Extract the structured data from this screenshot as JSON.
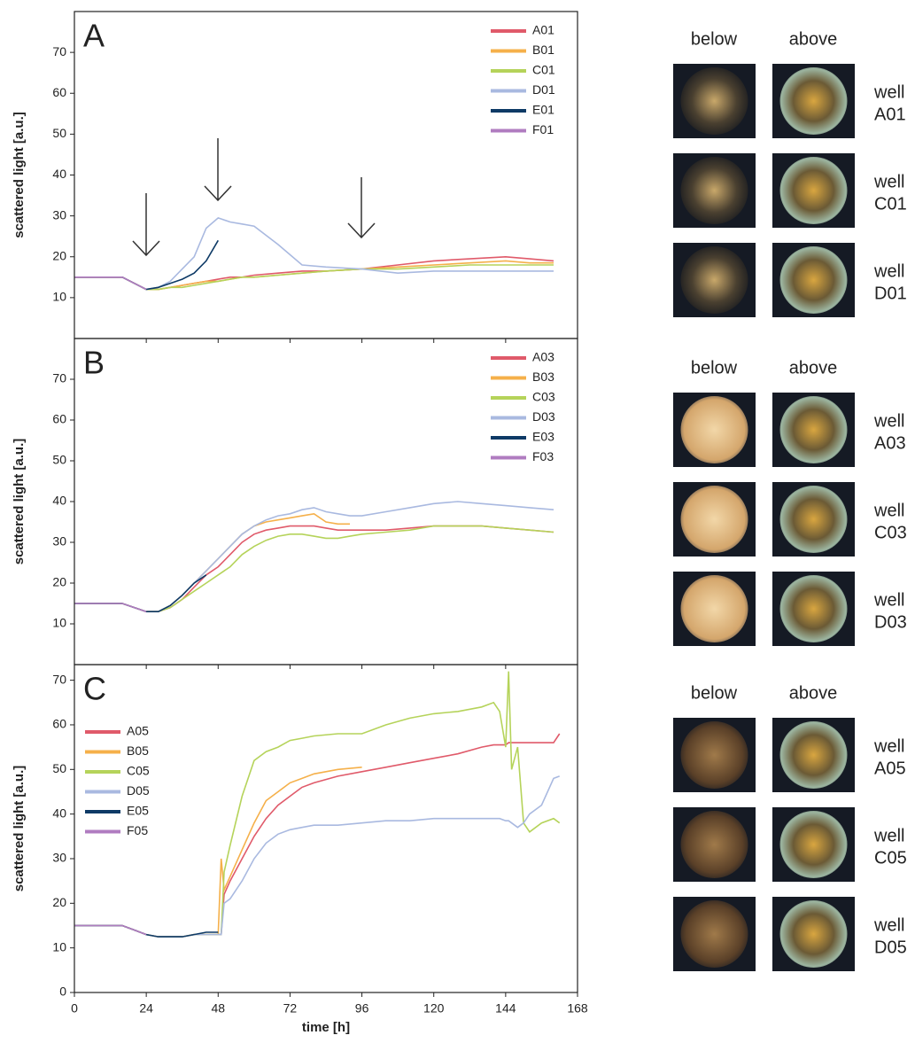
{
  "chart_data": [
    {
      "type": "line",
      "title": "A",
      "ylabel": "scattered light [a.u.]",
      "legend": "upper right",
      "xlim": [
        0,
        168
      ],
      "ylim": [
        0,
        80
      ],
      "yticks": [
        10,
        20,
        30,
        40,
        50,
        60,
        70
      ],
      "x": [
        0,
        8,
        16,
        20,
        24,
        28,
        32,
        36,
        40,
        44,
        48,
        52,
        56,
        60,
        68,
        76,
        84,
        96,
        108,
        120,
        132,
        144,
        152,
        160
      ],
      "series": [
        {
          "name": "A01",
          "color": "#e05a6a",
          "values": [
            15,
            15,
            15,
            13.5,
            12,
            12,
            12.5,
            13,
            13.5,
            14,
            14.5,
            15,
            15,
            15.5,
            16,
            16.5,
            16.5,
            17,
            18,
            19,
            19.5,
            20,
            19.5,
            19
          ]
        },
        {
          "name": "B01",
          "color": "#f5b04a",
          "values": [
            15,
            15,
            15,
            13.5,
            12,
            12,
            12.5,
            13,
            13.5,
            14,
            14,
            14.5,
            15,
            15,
            15.5,
            16,
            16.5,
            17,
            17.5,
            18,
            18.5,
            19,
            18.5,
            18.5
          ]
        },
        {
          "name": "C01",
          "color": "#b5d35a",
          "values": [
            15,
            15,
            15,
            13.5,
            12,
            12,
            12.5,
            12.5,
            13,
            13.5,
            14,
            14.5,
            15,
            15,
            15.5,
            16,
            16.5,
            17,
            17,
            17.5,
            18,
            18,
            18,
            18
          ]
        },
        {
          "name": "D01",
          "color": "#a9b9e0",
          "values": [
            15,
            15,
            15,
            13.5,
            12,
            12.5,
            14,
            17,
            20,
            27,
            29.5,
            28.5,
            28,
            27.5,
            23,
            18,
            17.5,
            17,
            16,
            16.5,
            16.5,
            16.5,
            16.5,
            16.5
          ]
        },
        {
          "name": "E01",
          "color": "#0e3a66",
          "values": [
            15,
            15,
            15,
            13.5,
            12,
            12.5,
            13.5,
            14.5,
            16,
            19,
            24,
            null,
            null,
            null,
            null,
            null,
            null,
            null,
            null,
            null,
            null,
            null,
            null,
            null
          ]
        },
        {
          "name": "F01",
          "color": "#b07cc0",
          "values": [
            15,
            15,
            15,
            13.5,
            12,
            null,
            null,
            null,
            null,
            null,
            null,
            null,
            null,
            null,
            null,
            null,
            null,
            null,
            null,
            null,
            null,
            null,
            null,
            null
          ]
        }
      ]
    },
    {
      "type": "line",
      "title": "B",
      "ylabel": "scattered light [a.u.]",
      "legend": "upper right",
      "xlim": [
        0,
        168
      ],
      "ylim": [
        0,
        80
      ],
      "yticks": [
        10,
        20,
        30,
        40,
        50,
        60,
        70
      ],
      "x": [
        0,
        8,
        16,
        20,
        24,
        28,
        32,
        36,
        40,
        44,
        48,
        52,
        56,
        60,
        64,
        68,
        72,
        76,
        80,
        84,
        88,
        92,
        96,
        104,
        112,
        120,
        128,
        136,
        144,
        152,
        160
      ],
      "series": [
        {
          "name": "A03",
          "color": "#e05a6a",
          "values": [
            15,
            15,
            15,
            14,
            13,
            13,
            14,
            16,
            19,
            22,
            24,
            27,
            30,
            32,
            33,
            33.5,
            34,
            34,
            34,
            33.5,
            33,
            33,
            33,
            33,
            33.5,
            34,
            34,
            34,
            33.5,
            33,
            32.5
          ]
        },
        {
          "name": "B03",
          "color": "#f5b04a",
          "values": [
            15,
            15,
            15,
            14,
            13,
            13,
            14.5,
            17,
            20,
            23,
            26,
            29,
            32,
            34,
            35,
            35.5,
            36,
            36.5,
            37,
            35,
            34.5,
            34.5,
            null,
            null,
            null,
            null,
            null,
            null,
            null,
            null,
            null
          ]
        },
        {
          "name": "C03",
          "color": "#b5d35a",
          "values": [
            15,
            15,
            15,
            14,
            13,
            13,
            14,
            16,
            18,
            20,
            22,
            24,
            27,
            29,
            30.5,
            31.5,
            32,
            32,
            31.5,
            31,
            31,
            31.5,
            32,
            32.5,
            33,
            34,
            34,
            34,
            33.5,
            33,
            32.5
          ]
        },
        {
          "name": "D03",
          "color": "#a9b9e0",
          "values": [
            15,
            15,
            15,
            14,
            13,
            13,
            14.5,
            17,
            20,
            23,
            26,
            29,
            32,
            34,
            35.5,
            36.5,
            37,
            38,
            38.5,
            37.5,
            37,
            36.5,
            36.5,
            37.5,
            38.5,
            39.5,
            40,
            39.5,
            39,
            38.5,
            38
          ]
        },
        {
          "name": "E03",
          "color": "#0e3a66",
          "values": [
            15,
            15,
            15,
            14,
            13,
            13,
            14.5,
            17,
            20,
            22,
            null,
            null,
            null,
            null,
            null,
            null,
            null,
            null,
            null,
            null,
            null,
            null,
            null,
            null,
            null,
            null,
            null,
            null,
            null,
            null,
            null
          ]
        },
        {
          "name": "F03",
          "color": "#b07cc0",
          "values": [
            15,
            15,
            15,
            14,
            13,
            null,
            null,
            null,
            null,
            null,
            null,
            null,
            null,
            null,
            null,
            null,
            null,
            null,
            null,
            null,
            null,
            null,
            null,
            null,
            null,
            null,
            null,
            null,
            null,
            null,
            null
          ]
        }
      ]
    },
    {
      "type": "line",
      "title": "C",
      "ylabel": "scattered light [a.u.]",
      "xlabel": "time [h]",
      "legend": "upper left",
      "xlim": [
        0,
        168
      ],
      "ylim": [
        0,
        73.5
      ],
      "xticks": [
        0,
        24,
        48,
        72,
        96,
        120,
        144,
        168
      ],
      "yticks": [
        0,
        10,
        20,
        30,
        40,
        50,
        60,
        70
      ],
      "x": [
        0,
        8,
        16,
        20,
        24,
        28,
        32,
        36,
        40,
        44,
        48,
        49,
        50,
        52,
        56,
        60,
        64,
        68,
        72,
        76,
        80,
        88,
        96,
        104,
        112,
        120,
        128,
        136,
        140,
        142,
        144,
        145,
        146,
        148,
        150,
        152,
        156,
        160,
        162
      ],
      "series": [
        {
          "name": "A05",
          "color": "#e05a6a",
          "values": [
            15,
            15,
            15,
            14,
            13,
            12.5,
            12.5,
            12.5,
            13,
            13,
            13,
            13,
            22,
            25,
            30,
            35,
            39,
            42,
            44,
            46,
            47,
            48.5,
            49.5,
            50.5,
            51.5,
            52.5,
            53.5,
            55,
            55.5,
            55.5,
            55.5,
            56,
            56,
            56,
            56,
            56,
            56,
            56,
            58
          ]
        },
        {
          "name": "B05",
          "color": "#f5b04a",
          "values": [
            15,
            15,
            15,
            14,
            13,
            12.5,
            12.5,
            12.5,
            13,
            13,
            13,
            30,
            23,
            26,
            32,
            38,
            43,
            45,
            47,
            48,
            49,
            50,
            50.5,
            null,
            null,
            null,
            null,
            null,
            null,
            null,
            null,
            null,
            null,
            null,
            null,
            null,
            null,
            null,
            null
          ]
        },
        {
          "name": "C05",
          "color": "#b5d35a",
          "values": [
            15,
            15,
            15,
            14,
            13,
            12.5,
            12.5,
            12.5,
            13,
            13,
            13,
            13,
            27,
            33,
            44,
            52,
            54,
            55,
            56.5,
            57,
            57.5,
            58,
            58,
            60,
            61.5,
            62.5,
            63,
            64,
            65,
            63,
            55,
            72,
            50,
            55,
            38,
            36,
            38,
            39,
            38
          ]
        },
        {
          "name": "D05",
          "color": "#a9b9e0",
          "values": [
            15,
            15,
            15,
            14,
            13,
            12.5,
            12.5,
            12.5,
            13,
            13,
            13,
            13,
            20,
            21,
            25,
            30,
            33.5,
            35.5,
            36.5,
            37,
            37.5,
            37.5,
            38,
            38.5,
            38.5,
            39,
            39,
            39,
            39,
            39,
            38.5,
            38.5,
            38,
            37,
            38,
            40,
            42,
            48,
            48.5
          ]
        },
        {
          "name": "E05",
          "color": "#0e3a66",
          "values": [
            15,
            15,
            15,
            14,
            13,
            12.5,
            12.5,
            12.5,
            13,
            13.5,
            13.5,
            null,
            null,
            null,
            null,
            null,
            null,
            null,
            null,
            null,
            null,
            null,
            null,
            null,
            null,
            null,
            null,
            null,
            null,
            null,
            null,
            null,
            null,
            null,
            null,
            null,
            null,
            null,
            null
          ]
        },
        {
          "name": "F05",
          "color": "#b07cc0",
          "values": [
            15,
            15,
            15,
            14,
            13,
            null,
            null,
            null,
            null,
            null,
            null,
            null,
            null,
            null,
            null,
            null,
            null,
            null,
            null,
            null,
            null,
            null,
            null,
            null,
            null,
            null,
            null,
            null,
            null,
            null,
            null,
            null,
            null,
            null,
            null,
            null,
            null,
            null,
            null
          ]
        }
      ]
    }
  ],
  "photos": {
    "groups": [
      {
        "columns": [
          "below",
          "above"
        ],
        "well_word": "well",
        "wells": [
          "A01",
          "C01",
          "D01"
        ]
      },
      {
        "columns": [
          "below",
          "above"
        ],
        "well_word": "well",
        "wells": [
          "A03",
          "C03",
          "D03"
        ]
      },
      {
        "columns": [
          "below",
          "above"
        ],
        "well_word": "well",
        "wells": [
          "A05",
          "C05",
          "D05"
        ]
      }
    ]
  }
}
